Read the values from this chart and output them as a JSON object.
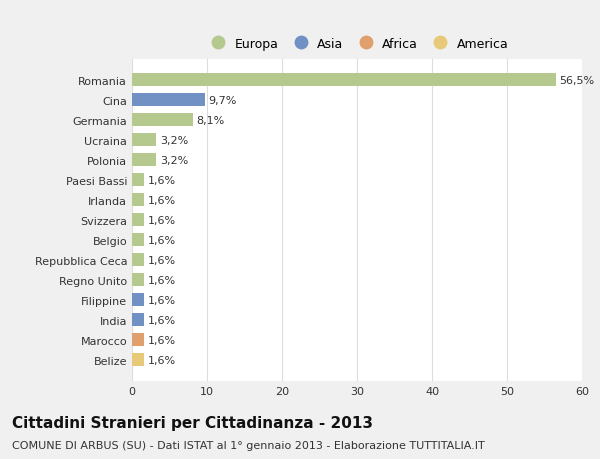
{
  "categories": [
    "Romania",
    "Cina",
    "Germania",
    "Ucraina",
    "Polonia",
    "Paesi Bassi",
    "Irlanda",
    "Svizzera",
    "Belgio",
    "Repubblica Ceca",
    "Regno Unito",
    "Filippine",
    "India",
    "Marocco",
    "Belize"
  ],
  "values": [
    56.5,
    9.7,
    8.1,
    3.2,
    3.2,
    1.6,
    1.6,
    1.6,
    1.6,
    1.6,
    1.6,
    1.6,
    1.6,
    1.6,
    1.6
  ],
  "colors": [
    "#b5c98e",
    "#7191c4",
    "#b5c98e",
    "#b5c98e",
    "#b5c98e",
    "#b5c98e",
    "#b5c98e",
    "#b5c98e",
    "#b5c98e",
    "#b5c98e",
    "#b5c98e",
    "#7191c4",
    "#7191c4",
    "#dfa06e",
    "#e8c97a"
  ],
  "labels": [
    "56,5%",
    "9,7%",
    "8,1%",
    "3,2%",
    "3,2%",
    "1,6%",
    "1,6%",
    "1,6%",
    "1,6%",
    "1,6%",
    "1,6%",
    "1,6%",
    "1,6%",
    "1,6%",
    "1,6%"
  ],
  "legend_labels": [
    "Europa",
    "Asia",
    "Africa",
    "America"
  ],
  "legend_colors": [
    "#b5c98e",
    "#7191c4",
    "#dfa06e",
    "#e8c97a"
  ],
  "title": "Cittadini Stranieri per Cittadinanza - 2013",
  "subtitle": "COMUNE DI ARBUS (SU) - Dati ISTAT al 1° gennaio 2013 - Elaborazione TUTTITALIA.IT",
  "xlim": [
    0,
    60
  ],
  "xticks": [
    0,
    10,
    20,
    30,
    40,
    50,
    60
  ],
  "bg_color": "#f0f0f0",
  "plot_bg_color": "#ffffff",
  "grid_color": "#dddddd",
  "text_color": "#333333",
  "title_fontsize": 11,
  "subtitle_fontsize": 8,
  "tick_fontsize": 8,
  "label_fontsize": 8,
  "legend_fontsize": 9
}
